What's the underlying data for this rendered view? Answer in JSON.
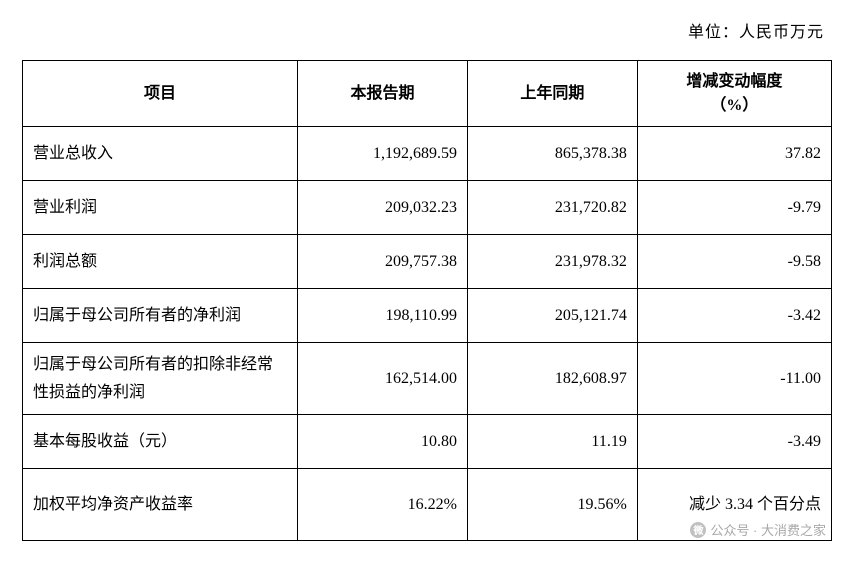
{
  "unit_label": "单位：人民币万元",
  "table": {
    "columns": [
      "项目",
      "本报告期",
      "上年同期",
      "增减变动幅度\n（%）"
    ],
    "column_widths": [
      "34%",
      "21%",
      "21%",
      "24%"
    ],
    "header_fontsize": 16,
    "cell_fontsize": 16,
    "border_color": "#000000",
    "text_color": "#000000",
    "background_color": "#ffffff",
    "rows": [
      {
        "item": "营业总收入",
        "current": "1,192,689.59",
        "prior": "865,378.38",
        "change": "37.82",
        "tall": false
      },
      {
        "item": "营业利润",
        "current": "209,032.23",
        "prior": "231,720.82",
        "change": "-9.79",
        "tall": false
      },
      {
        "item": "利润总额",
        "current": "209,757.38",
        "prior": "231,978.32",
        "change": "-9.58",
        "tall": false
      },
      {
        "item": "归属于母公司所有者的净利润",
        "current": "198,110.99",
        "prior": "205,121.74",
        "change": "-3.42",
        "tall": false
      },
      {
        "item": "归属于母公司所有者的扣除非经常性损益的净利润",
        "current": "162,514.00",
        "prior": "182,608.97",
        "change": "-11.00",
        "tall": true
      },
      {
        "item": "基本每股收益（元）",
        "current": "10.80",
        "prior": "11.19",
        "change": "-3.49",
        "tall": false
      },
      {
        "item": "加权平均净资产收益率",
        "current": "16.22%",
        "prior": "19.56%",
        "change": "减少 3.34 个百分点",
        "tall": true
      }
    ]
  },
  "watermark": {
    "text": "公众号 · 大消费之家",
    "icon_label": "微",
    "color": "#a8a8a8"
  }
}
